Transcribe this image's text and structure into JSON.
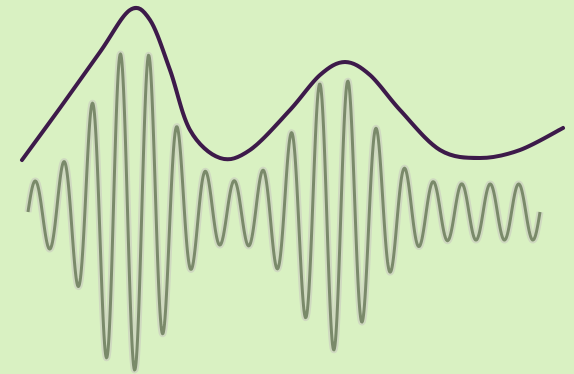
{
  "colors": {
    "background": "#d9f1c2",
    "carrier_wave": "#7a8a6a",
    "carrier_wave_outline": "#cfd9c0",
    "envelope": "#3d1a4a"
  },
  "figure": {
    "description_icon": "amplitude-modulated-wave",
    "carrier_cycles_visible": 18
  }
}
